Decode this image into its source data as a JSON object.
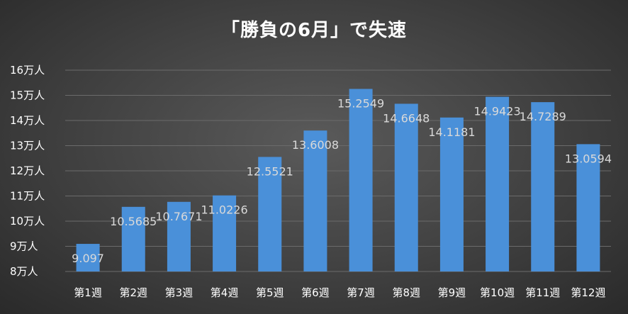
{
  "chart_data": {
    "type": "bar",
    "title": "「勝負の6月」で失速",
    "xlabel": "",
    "ylabel": "",
    "ylim": [
      8,
      16
    ],
    "y_ticks": [
      8,
      9,
      10,
      11,
      12,
      13,
      14,
      15,
      16
    ],
    "y_tick_labels": [
      "8万人",
      "9万人",
      "10万人",
      "11万人",
      "12万人",
      "13万人",
      "14万人",
      "15万人",
      "16万人"
    ],
    "categories": [
      "第1週",
      "第2週",
      "第3週",
      "第4週",
      "第5週",
      "第6週",
      "第7週",
      "第8週",
      "第9週",
      "第10週",
      "第11週",
      "第12週"
    ],
    "values": [
      9.097,
      10.5685,
      10.7671,
      11.0226,
      12.5521,
      13.6008,
      15.2549,
      14.6648,
      14.1181,
      14.9423,
      14.7289,
      13.0594
    ],
    "data_labels": [
      "9.097",
      "10.5685",
      "10.7671",
      "11.0226",
      "12.5521",
      "13.6008",
      "15.2549",
      "14.6648",
      "14.1181",
      "14.9423",
      "14.7289",
      "13.0594"
    ],
    "grid": true,
    "legend": "none",
    "colors": {
      "bar": "#4a90d9",
      "background": "#404040",
      "grid": "#6b6b6b",
      "text": "#ffffff",
      "data_label": "#d9d9d9"
    }
  }
}
